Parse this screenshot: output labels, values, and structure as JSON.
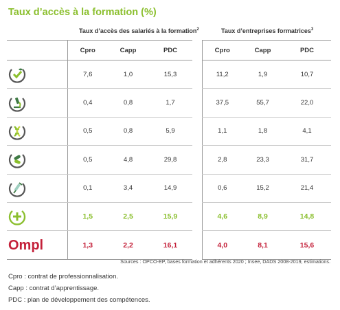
{
  "title": "Taux d’accès à la formation (%)",
  "group1": {
    "label": "Taux d’accès des salariés à la formation",
    "sup": "2"
  },
  "group2": {
    "label": "Taux d’entreprises formatrices",
    "sup": "3"
  },
  "columns": [
    "Cpro",
    "Capp",
    "PDC",
    "Cpro",
    "Capp",
    "PDC"
  ],
  "rows": [
    {
      "icon": "check-leaf-icon",
      "values": [
        "7,6",
        "1,0",
        "15,3",
        "11,2",
        "1,9",
        "10,7"
      ]
    },
    {
      "icon": "microscope-icon",
      "values": [
        "0,4",
        "0,8",
        "1,7",
        "37,5",
        "55,7",
        "22,0"
      ]
    },
    {
      "icon": "dna-icon",
      "values": [
        "0,5",
        "0,8",
        "5,9",
        "1,1",
        "1,8",
        "4,1"
      ]
    },
    {
      "icon": "capsules-icon",
      "values": [
        "0,5",
        "4,8",
        "29,8",
        "2,8",
        "23,3",
        "31,7"
      ]
    },
    {
      "icon": "syringe-icon",
      "values": [
        "0,1",
        "3,4",
        "14,9",
        "0,6",
        "15,2",
        "21,4"
      ]
    },
    {
      "icon": "plus-circle-icon",
      "values": [
        "1,5",
        "2,5",
        "15,9",
        "4,6",
        "8,9",
        "14,8"
      ]
    },
    {
      "logo": "Ompl",
      "values": [
        "1,3",
        "2,2",
        "16,1",
        "4,0",
        "8,1",
        "15,6"
      ]
    }
  ],
  "sources": "Sources : OPCO-EP, bases formation et adhérents 2020 ; Insee, DADS 2008-2019, estimations.",
  "legend": [
    "Cpro : contrat de professionnalisation.",
    "Capp : contrat d’apprentissage.",
    "PDC : plan de développement des compétences."
  ],
  "colors": {
    "green": "#8bbf2e",
    "red": "#c4213a",
    "dark_green": "#3f7a45",
    "ring_dark": "#555555"
  }
}
